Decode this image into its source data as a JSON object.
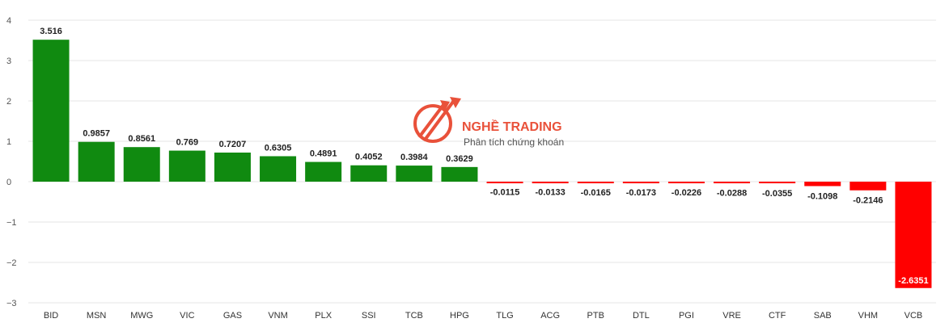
{
  "chart_data": {
    "type": "bar",
    "categories": [
      "BID",
      "MSN",
      "MWG",
      "VIC",
      "GAS",
      "VNM",
      "PLX",
      "SSI",
      "TCB",
      "HPG",
      "TLG",
      "ACG",
      "PTB",
      "DTL",
      "PGI",
      "VRE",
      "CTF",
      "SAB",
      "VHM",
      "VCB"
    ],
    "values": [
      3.516,
      0.9857,
      0.8561,
      0.769,
      0.7207,
      0.6305,
      0.4891,
      0.4052,
      0.3984,
      0.3629,
      -0.0115,
      -0.0133,
      -0.0165,
      -0.0173,
      -0.0226,
      -0.0288,
      -0.0355,
      -0.1098,
      -0.2146,
      -2.6351
    ],
    "value_labels": [
      "3.516",
      "0.9857",
      "0.8561",
      "0.769",
      "0.7207",
      "0.6305",
      "0.4891",
      "0.4052",
      "0.3984",
      "0.3629",
      "-0.0115",
      "-0.0133",
      "-0.0165",
      "-0.0173",
      "-0.0226",
      "-0.0288",
      "-0.0355",
      "-0.1098",
      "-0.2146",
      "-2.6351"
    ],
    "ylim": [
      -3,
      4
    ],
    "yticks": [
      4,
      3,
      2,
      1,
      0,
      -1,
      -2,
      -3
    ],
    "ytick_labels": [
      "4",
      "3",
      "2",
      "1",
      "0",
      "−1",
      "−2",
      "−3"
    ],
    "grid": true,
    "colors": {
      "positive": "#108a10",
      "negative": "#ff0000",
      "grid": "#e6e6e6"
    },
    "title": "",
    "xlabel": "",
    "ylabel": ""
  },
  "watermark": {
    "title": "NGHỀ TRADING",
    "subtitle": "Phân tích chứng khoán",
    "icon": "trading-logo-icon",
    "color": "#e8432a"
  }
}
